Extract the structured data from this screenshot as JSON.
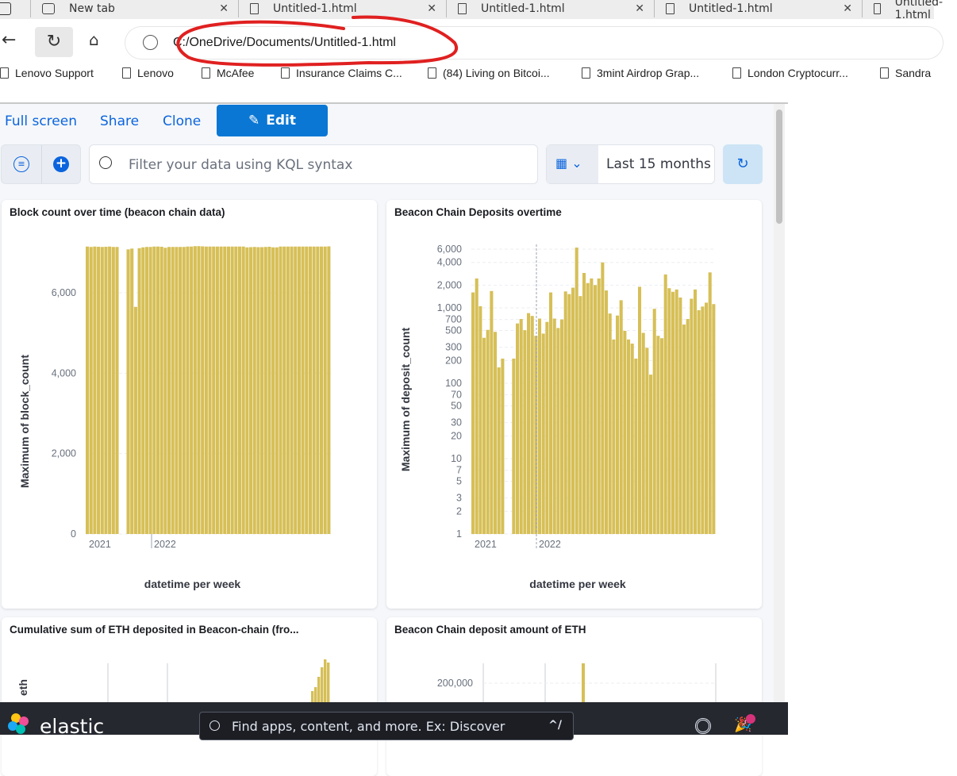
{
  "browser": {
    "tabs": [
      {
        "label": "New tab"
      },
      {
        "label": "Untitled-1.html"
      },
      {
        "label": "Untitled-1.html"
      },
      {
        "label": "Untitled-1.html"
      },
      {
        "label": "Untitled-1.html"
      }
    ],
    "url": "C:/OneDrive/Documents/Untitled-1.html",
    "bookmarks": [
      "Lenovo Support",
      "Lenovo",
      "McAfee",
      "Insurance Claims C...",
      "(84) Living on Bitcoi...",
      "3mint Airdrop Grap...",
      "London Cryptocurr...",
      "Sandra"
    ],
    "annotation_color": "#e02020"
  },
  "toolbar": {
    "full_screen": "Full screen",
    "share": "Share",
    "clone": "Clone",
    "edit": "Edit"
  },
  "query": {
    "placeholder": "Filter your data using KQL syntax",
    "time_range": "Last 15 months"
  },
  "colors": {
    "accent": "#0b77d4",
    "bar": "#d6bf57",
    "footer": "#25282f"
  },
  "footer": {
    "logo": "elastic",
    "search_placeholder": "Find apps, content, and more. Ex: Discover",
    "shortcut": "^/"
  },
  "chart_data": [
    {
      "type": "bar",
      "title": "Block count over time (beacon chain data)",
      "xlabel": "datetime per week",
      "ylabel": "Maximum of block_count",
      "ylim": [
        0,
        7150
      ],
      "scale": "linear",
      "yticks": [
        "0",
        "2,000",
        "4,000",
        "6,000"
      ],
      "xticks": [
        "2021",
        "2022"
      ],
      "grid": true,
      "values": [
        7150,
        7140,
        7150,
        7145,
        7140,
        7145,
        7150,
        7140,
        7140,
        0,
        0,
        7080,
        7100,
        5650,
        7110,
        7130,
        7140,
        7140,
        7150,
        7150,
        7145,
        7120,
        7140,
        7140,
        7140,
        7140,
        7140,
        7150,
        7150,
        7160,
        7160,
        7155,
        7150,
        7150,
        7150,
        7150,
        7150,
        7150,
        7150,
        7150,
        7150,
        7150,
        7150,
        7130,
        7135,
        7140,
        7135,
        7135,
        7140,
        7145,
        7130,
        7130,
        7150,
        7150,
        7150,
        7150,
        7150,
        7150,
        7150,
        7150,
        7150,
        7150,
        7150,
        7150,
        7150,
        7155
      ]
    },
    {
      "type": "bar",
      "title": "Beacon Chain Deposits overtime",
      "xlabel": "datetime per week",
      "ylabel": "Maximum of deposit_count",
      "ylim": [
        1,
        6500
      ],
      "scale": "log",
      "yticks": [
        "1",
        "2",
        "3",
        "5",
        "7",
        "10",
        "20",
        "30",
        "50",
        "70",
        "100",
        "200",
        "300",
        "500",
        "700",
        "1,000",
        "2,000",
        "4,000",
        "6,000"
      ],
      "xticks": [
        "2021",
        "2022"
      ],
      "grid": true,
      "values": [
        1600,
        2450,
        1050,
        400,
        510,
        1670,
        480,
        162,
        212,
        0,
        0,
        212,
        620,
        710,
        505,
        850,
        780,
        425,
        720,
        455,
        650,
        1600,
        720,
        540,
        700,
        1650,
        1520,
        1850,
        6300,
        1430,
        2900,
        2130,
        2450,
        2000,
        2450,
        4000,
        1700,
        840,
        380,
        790,
        1260,
        495,
        380,
        335,
        212,
        1900,
        465,
        295,
        130,
        970,
        425,
        395,
        2770,
        1820,
        1630,
        1750,
        1370,
        600,
        710,
        1320,
        1750,
        930,
        1040,
        1170,
        2950,
        1120
      ]
    },
    {
      "type": "bar",
      "title": "Cumulative sum of ETH deposited in Beacon-chain (fro...",
      "ylabel": "eth"
    },
    {
      "type": "bar",
      "title": "Beacon Chain deposit amount of ETH",
      "yticks": [
        "200,000"
      ]
    }
  ]
}
